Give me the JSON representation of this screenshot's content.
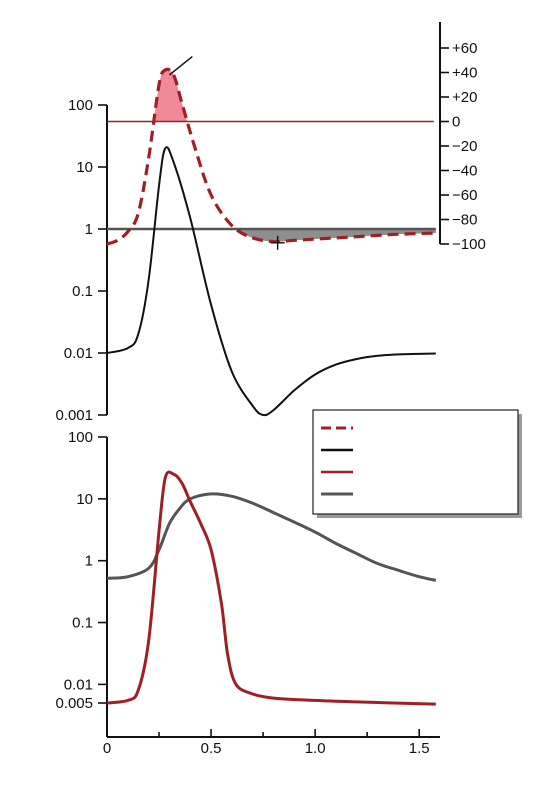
{
  "chart_data": [
    {
      "type": "line",
      "panel": "upper",
      "title": "",
      "xlabel": "",
      "y_scale": "log",
      "ylim": [
        0.001,
        100
      ],
      "ytick_labels": [
        "100",
        "10",
        "1",
        "0.1",
        "0.01",
        "0.001"
      ],
      "y2_scale": "linear",
      "y2lim": [
        -100,
        60
      ],
      "y2tick_labels": [
        "+60",
        "+40",
        "+20",
        "0",
        "−20",
        "−40",
        "−60",
        "−80",
        "−100"
      ],
      "series": [
        {
          "axis": "right",
          "style": "dashed",
          "color": "#a01f26",
          "x": [
            0,
            0.05,
            0.1,
            0.15,
            0.2,
            0.25,
            0.28,
            0.32,
            0.36,
            0.42,
            0.5,
            0.6,
            0.7,
            0.8,
            0.9,
            1.0,
            1.1,
            1.2,
            1.3,
            1.4,
            1.58
          ],
          "y": [
            -100,
            -97,
            -90,
            -75,
            -30,
            30,
            42,
            38,
            15,
            -20,
            -60,
            -85,
            -95,
            -98,
            -97,
            -96,
            -95,
            -94,
            -93,
            -92,
            -91
          ]
        },
        {
          "axis": "left",
          "style": "solid",
          "color": "#111111",
          "x": [
            0,
            0.1,
            0.15,
            0.2,
            0.25,
            0.28,
            0.32,
            0.4,
            0.5,
            0.6,
            0.7,
            0.75,
            0.8,
            0.9,
            1.0,
            1.1,
            1.2,
            1.3,
            1.4,
            1.58
          ],
          "y": [
            0.01,
            0.012,
            0.02,
            0.15,
            5,
            20,
            12,
            1.5,
            0.06,
            0.005,
            0.0014,
            0.001,
            0.0012,
            0.0025,
            0.0045,
            0.0065,
            0.008,
            0.009,
            0.0095,
            0.0098
          ]
        },
        {
          "axis": "left",
          "style": "solid",
          "color": "#555555",
          "x": [
            0,
            0.5,
            0.8,
            1.58
          ],
          "y": [
            1,
            1,
            1,
            1
          ]
        },
        {
          "axis": "right",
          "style": "solid",
          "color": "#a01f26",
          "x": [
            0,
            1.58
          ],
          "y": [
            0,
            0
          ]
        }
      ]
    },
    {
      "type": "line",
      "panel": "lower",
      "title": "",
      "xlabel": "",
      "y_scale": "log",
      "ylim": [
        0.005,
        100
      ],
      "ytick_labels": [
        "100",
        "10",
        "1",
        "0.1",
        "0.01",
        "0.005"
      ],
      "xlim": [
        0,
        1.6
      ],
      "xtick_labels": [
        "0",
        "0.5",
        "1.0",
        "1.5"
      ],
      "series": [
        {
          "style": "solid",
          "color": "#a01f26",
          "x": [
            0,
            0.1,
            0.15,
            0.2,
            0.25,
            0.28,
            0.32,
            0.36,
            0.4,
            0.45,
            0.5,
            0.55,
            0.58,
            0.62,
            0.7,
            0.8,
            1.0,
            1.2,
            1.58
          ],
          "y": [
            0.005,
            0.0055,
            0.008,
            0.05,
            3,
            22,
            25,
            18,
            9,
            4,
            1.5,
            0.2,
            0.03,
            0.01,
            0.007,
            0.006,
            0.0055,
            0.0052,
            0.0048
          ]
        },
        {
          "style": "solid-thick",
          "color": "#555555",
          "x": [
            0,
            0.1,
            0.2,
            0.25,
            0.3,
            0.35,
            0.4,
            0.5,
            0.6,
            0.7,
            0.8,
            0.9,
            1.0,
            1.1,
            1.2,
            1.3,
            1.4,
            1.5,
            1.58
          ],
          "y": [
            0.52,
            0.55,
            0.75,
            1.5,
            4,
            7,
            10,
            12,
            11,
            8.5,
            6,
            4.2,
            2.9,
            1.9,
            1.3,
            0.9,
            0.7,
            0.55,
            0.48
          ]
        }
      ]
    }
  ],
  "legend": {
    "placement": "right",
    "entries": [
      {
        "style": "dashed",
        "color": "#a01f26"
      },
      {
        "style": "solid",
        "color": "#111111"
      },
      {
        "style": "solid",
        "color": "#a01f26"
      },
      {
        "style": "solid-thick",
        "color": "#555555"
      }
    ]
  },
  "colors": {
    "red": "#a01f26",
    "pink_fill": "#f08a9a",
    "gray_fill": "#7a7a7a",
    "black": "#111111"
  }
}
